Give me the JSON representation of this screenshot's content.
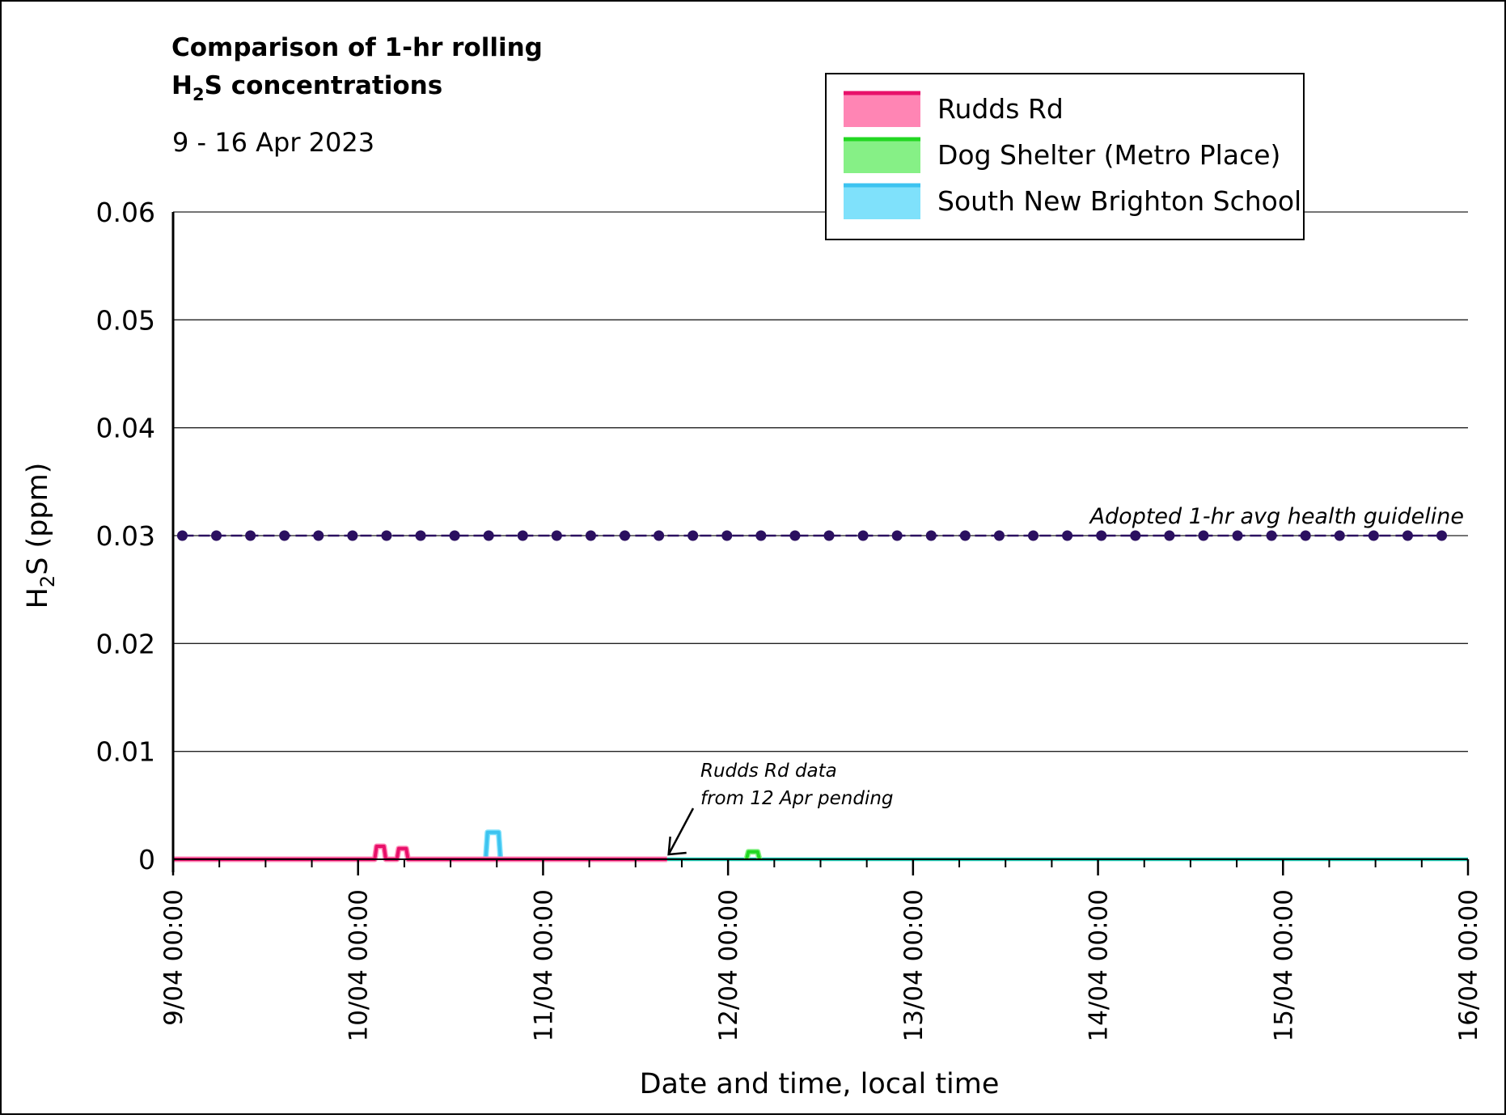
{
  "chart_data": {
    "type": "line",
    "title_line1": "Comparison of 1-hr rolling",
    "title_line2_prefix": "H",
    "title_line2_sub": "2",
    "title_line2_suffix": "S concentrations",
    "subtitle": "9 - 16 Apr 2023",
    "xlabel": "Date and time, local time",
    "ylabel_prefix": "H",
    "ylabel_sub": "2",
    "ylabel_suffix": "S (ppm)",
    "ylim": [
      0,
      0.06
    ],
    "y_ticks": [
      {
        "value": 0,
        "label": "0"
      },
      {
        "value": 0.01,
        "label": "0.01"
      },
      {
        "value": 0.02,
        "label": "0.02"
      },
      {
        "value": 0.03,
        "label": "0.03"
      },
      {
        "value": 0.04,
        "label": "0.04"
      },
      {
        "value": 0.05,
        "label": "0.05"
      },
      {
        "value": 0.06,
        "label": "0.06"
      }
    ],
    "x_range_days": [
      9,
      16
    ],
    "x_ticks": [
      {
        "day": 9,
        "label": "9/04 00:00"
      },
      {
        "day": 10,
        "label": "10/04 00:00"
      },
      {
        "day": 11,
        "label": "11/04 00:00"
      },
      {
        "day": 12,
        "label": "12/04 00:00"
      },
      {
        "day": 13,
        "label": "13/04 00:00"
      },
      {
        "day": 14,
        "label": "14/04 00:00"
      },
      {
        "day": 15,
        "label": "15/04 00:00"
      },
      {
        "day": 16,
        "label": "16/04 00:00"
      }
    ],
    "grid": "horizontal",
    "legend_position": "top-right",
    "series": [
      {
        "name": "Rudds Rd",
        "color": "#e8106a",
        "fill": "#ff85b4",
        "points": [
          [
            9.0,
            0
          ],
          [
            10.09,
            0
          ],
          [
            10.1,
            0.0012
          ],
          [
            10.14,
            0.0012
          ],
          [
            10.15,
            0
          ],
          [
            10.21,
            0
          ],
          [
            10.22,
            0.001
          ],
          [
            10.26,
            0.001
          ],
          [
            10.27,
            0
          ],
          [
            11.67,
            0
          ]
        ]
      },
      {
        "name": "Dog Shelter (Metro Place)",
        "color": "#22d722",
        "fill": "#86f086",
        "points": [
          [
            12.1,
            0
          ],
          [
            12.11,
            0.0007
          ],
          [
            12.16,
            0.0007
          ],
          [
            12.17,
            0
          ]
        ]
      },
      {
        "name": "South New Brighton School",
        "color": "#3cc3f0",
        "fill": "#7fe1fb",
        "points": [
          [
            10.69,
            0
          ],
          [
            10.7,
            0.0025
          ],
          [
            10.76,
            0.0025
          ],
          [
            10.77,
            0
          ]
        ]
      }
    ],
    "baseline_series": {
      "color": "#1ecfb8",
      "points": [
        [
          11.67,
          0
        ],
        [
          16.0,
          0
        ]
      ]
    },
    "guideline": {
      "label": "Adopted 1-hr avg health guideline",
      "value": 0.03,
      "color": "#2b1060",
      "marker_days": [
        9.05,
        9.234,
        9.418,
        9.602,
        9.786,
        9.97,
        10.154,
        10.338,
        10.522,
        10.706,
        10.89,
        11.074,
        11.258,
        11.442,
        11.626,
        11.81,
        11.994,
        12.178,
        12.362,
        12.546,
        12.73,
        12.914,
        13.098,
        13.282,
        13.466,
        13.65,
        13.834,
        14.018,
        14.202,
        14.386,
        14.57,
        14.754,
        14.938,
        15.122,
        15.306,
        15.49,
        15.674,
        15.858
      ]
    },
    "annotation": {
      "line1": "Rudds Rd data",
      "line2": "from 12 Apr pending",
      "points_to_day": 11.67,
      "points_to_value": 0
    }
  }
}
